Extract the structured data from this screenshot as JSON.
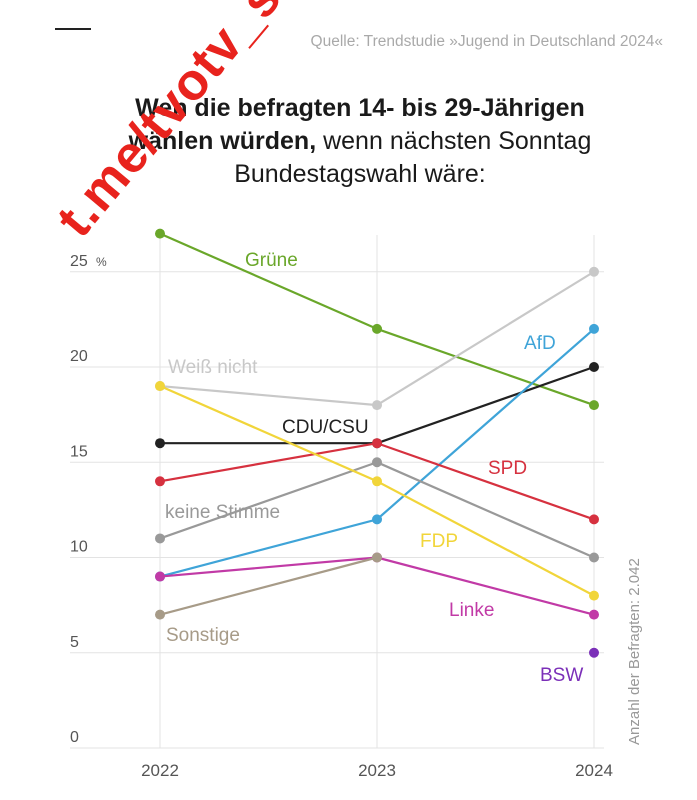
{
  "source": "Quelle: Trendstudie »Jugend in Deutschland 2024«",
  "title_bold": "Wen die befragten 14- bis 29-Jährigen",
  "title_line2_bold": "wählen würden,",
  "title_line2_rest": " wenn nächsten Sonntag",
  "title_line3": "Bundestagswahl wäre:",
  "watermark": "t.me/tvotv_sk",
  "side_note": "Anzahl der Befragten: 2.042",
  "chart_data": {
    "type": "line",
    "x": [
      "2022",
      "2023",
      "2024"
    ],
    "ylim": [
      0,
      26
    ],
    "yticks": [
      0,
      5,
      10,
      15,
      20,
      25
    ],
    "yunit": "%",
    "grid": true,
    "series": [
      {
        "name": "Grüne",
        "color": "#6aa72a",
        "values": [
          27,
          22,
          18
        ]
      },
      {
        "name": "Weiß nicht",
        "color": "#c8c8c8",
        "values": [
          19,
          18,
          25
        ]
      },
      {
        "name": "CDU/CSU",
        "color": "#222222",
        "values": [
          16,
          16,
          20
        ]
      },
      {
        "name": "AfD",
        "color": "#3fa4d8",
        "values": [
          9,
          12,
          22
        ]
      },
      {
        "name": "SPD",
        "color": "#d6313f",
        "values": [
          14,
          16,
          12
        ]
      },
      {
        "name": "keine Stimme",
        "color": "#999999",
        "values": [
          11,
          15,
          10
        ]
      },
      {
        "name": "FDP",
        "color": "#f1d53a",
        "values": [
          19,
          14,
          8
        ]
      },
      {
        "name": "Linke",
        "color": "#c13aa6",
        "values": [
          9,
          10,
          7
        ]
      },
      {
        "name": "Sonstige",
        "color": "#a79b88",
        "values": [
          7,
          10,
          null
        ]
      },
      {
        "name": "BSW",
        "color": "#7b2fb8",
        "values": [
          null,
          null,
          5
        ]
      }
    ]
  }
}
